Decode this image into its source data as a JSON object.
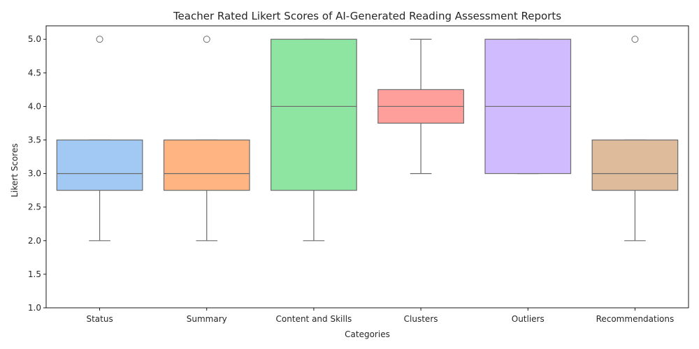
{
  "chart_data": {
    "type": "box",
    "title": "Teacher Rated Likert Scores of AI-Generated Reading Assessment Reports",
    "xlabel": "Categories",
    "ylabel": "Likert Scores",
    "ylim": [
      1.0,
      5.0
    ],
    "yticks": [
      "1.0",
      "1.5",
      "2.0",
      "2.5",
      "3.0",
      "3.5",
      "4.0",
      "4.5",
      "5.0"
    ],
    "grid": false,
    "categories": [
      "Status",
      "Summary",
      "Content and Skills",
      "Clusters",
      "Outliers",
      "Recommendations"
    ],
    "boxes": [
      {
        "category": "Status",
        "whisker_low": 2.0,
        "q1": 2.75,
        "median": 3.0,
        "q3": 3.5,
        "whisker_high": 3.5,
        "outliers": [
          5.0
        ],
        "color": "#a1c9f4"
      },
      {
        "category": "Summary",
        "whisker_low": 2.0,
        "q1": 2.75,
        "median": 3.0,
        "q3": 3.5,
        "whisker_high": 3.5,
        "outliers": [
          5.0
        ],
        "color": "#ffb482"
      },
      {
        "category": "Content and Skills",
        "whisker_low": 2.0,
        "q1": 2.75,
        "median": 4.0,
        "q3": 5.0,
        "whisker_high": 5.0,
        "outliers": [],
        "color": "#8de5a1"
      },
      {
        "category": "Clusters",
        "whisker_low": 3.0,
        "q1": 3.75,
        "median": 4.0,
        "q3": 4.25,
        "whisker_high": 5.0,
        "outliers": [],
        "color": "#ff9f9b"
      },
      {
        "category": "Outliers",
        "whisker_low": 3.0,
        "q1": 3.0,
        "median": 4.0,
        "q3": 5.0,
        "whisker_high": 5.0,
        "outliers": [],
        "color": "#d0bbff"
      },
      {
        "category": "Recommendations",
        "whisker_low": 2.0,
        "q1": 2.75,
        "median": 3.0,
        "q3": 3.5,
        "whisker_high": 3.5,
        "outliers": [
          5.0
        ],
        "color": "#debb9b"
      }
    ]
  }
}
